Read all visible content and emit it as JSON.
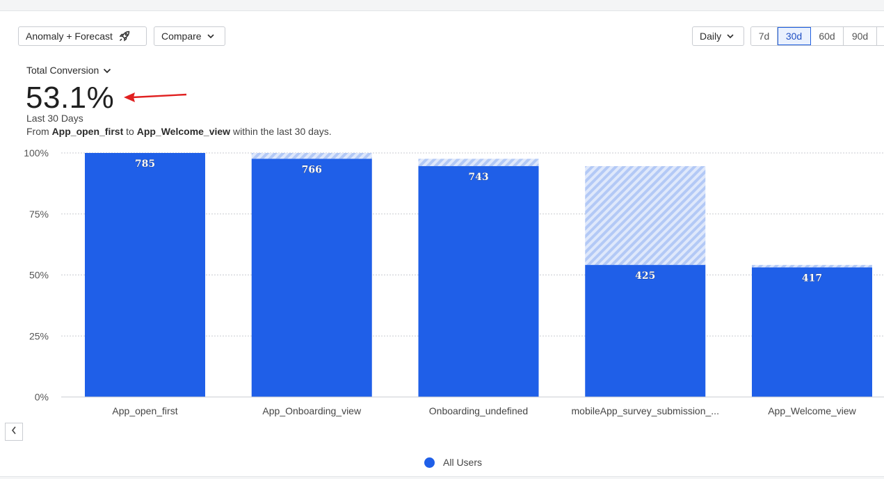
{
  "toolbar": {
    "anomaly_label": "Anomaly + Forecast",
    "compare_label": "Compare",
    "interval_label": "Daily",
    "ranges": [
      "7d",
      "30d",
      "60d",
      "90d"
    ],
    "active_range": "30d"
  },
  "metric": {
    "selector_label": "Total Conversion",
    "value": "53.1%",
    "period": "Last 30 Days",
    "desc_prefix": "From",
    "from_event": "App_open_first",
    "desc_mid": "to",
    "to_event": "App_Welcome_view",
    "desc_suffix": "within the last 30 days."
  },
  "annotation": {
    "arrow_color": "#e02020"
  },
  "chart_data": {
    "type": "bar",
    "categories": [
      "App_open_first",
      "App_Onboarding_view",
      "Onboarding_undefined",
      "mobileApp_survey_submission_...",
      "App_Welcome_view"
    ],
    "series": [
      {
        "name": "All Users",
        "values": [
          785,
          766,
          743,
          425,
          417
        ],
        "percent": [
          100,
          97.6,
          94.6,
          54.1,
          53.1
        ]
      }
    ],
    "dropoff_reference_percent": [
      100,
      100,
      97.6,
      94.6,
      54.1
    ],
    "y_ticks": [
      "0%",
      "25%",
      "50%",
      "75%",
      "100%"
    ],
    "ylim": [
      0,
      100
    ],
    "bar_color": "#1f5fe8",
    "dropoff_color": "#b9cdf7",
    "grid": true,
    "legend_position": "bottom"
  },
  "legend": {
    "label": "All Users"
  }
}
